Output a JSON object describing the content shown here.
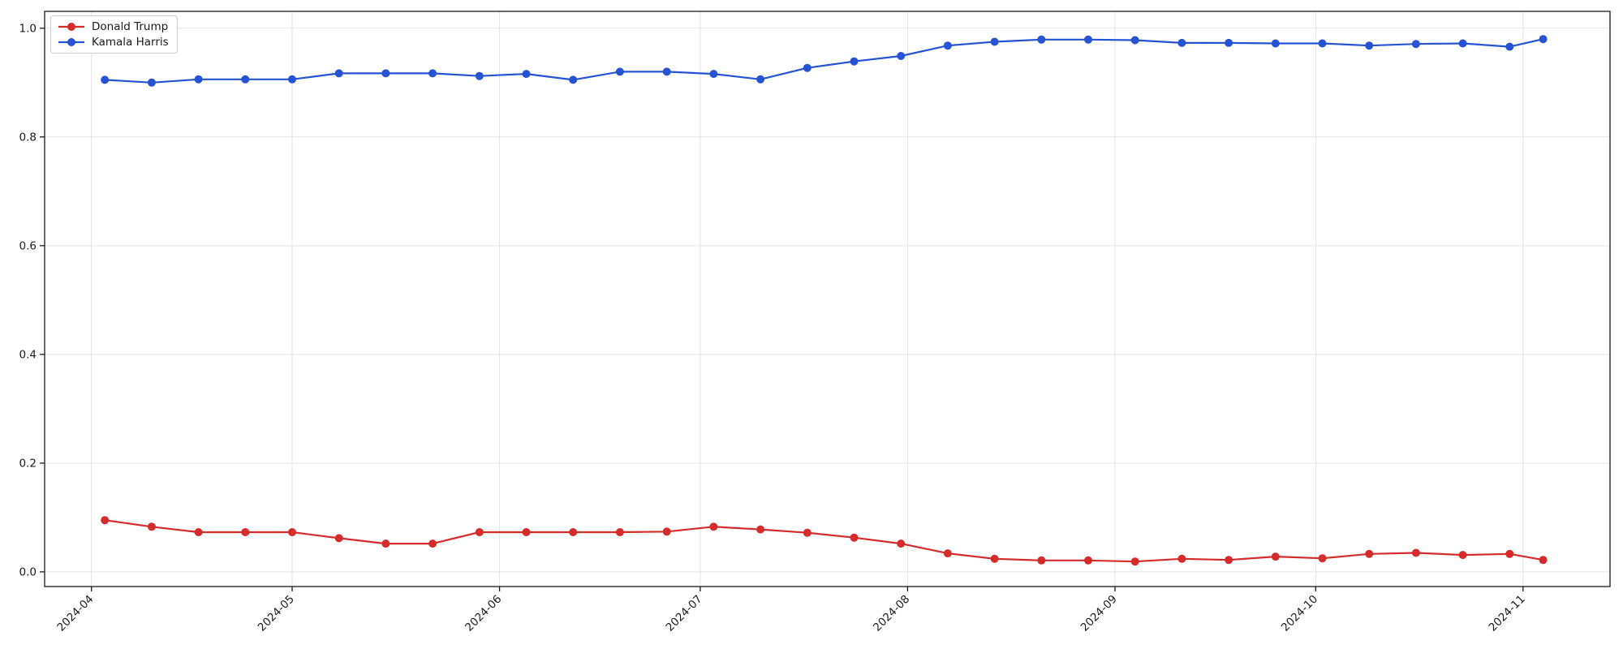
{
  "figure": {
    "background": "#ffffff",
    "text_color": "#1a1a1a",
    "spine_color": "#1a1a1a",
    "grid_color": "#e3e3e3",
    "legend": {
      "position": "upper-left",
      "items": [
        {
          "label": "Donald Trump",
          "color": "#d62b2b"
        },
        {
          "label": "Kamala Harris",
          "color": "#2653d4"
        }
      ]
    }
  },
  "chart_data": {
    "type": "line",
    "title": "",
    "xlabel": "",
    "ylabel": "",
    "grid": true,
    "legend_position": "upper-left",
    "marker": "circle",
    "x": [
      "2024-04-03",
      "2024-04-10",
      "2024-04-17",
      "2024-04-24",
      "2024-05-01",
      "2024-05-08",
      "2024-05-15",
      "2024-05-22",
      "2024-05-29",
      "2024-06-05",
      "2024-06-12",
      "2024-06-19",
      "2024-06-26",
      "2024-07-03",
      "2024-07-10",
      "2024-07-17",
      "2024-07-24",
      "2024-07-31",
      "2024-08-07",
      "2024-08-14",
      "2024-08-21",
      "2024-08-28",
      "2024-09-04",
      "2024-09-11",
      "2024-09-18",
      "2024-09-25",
      "2024-10-02",
      "2024-10-09",
      "2024-10-16",
      "2024-10-23",
      "2024-10-30",
      "2024-11-04"
    ],
    "series": [
      {
        "name": "Donald Trump",
        "color": "#d62b2b",
        "values": [
          0.095,
          0.083,
          0.073,
          0.073,
          0.073,
          0.062,
          0.052,
          0.052,
          0.073,
          0.073,
          0.073,
          0.073,
          0.074,
          0.083,
          0.078,
          0.072,
          0.063,
          0.052,
          0.034,
          0.024,
          0.021,
          0.021,
          0.019,
          0.024,
          0.022,
          0.028,
          0.025,
          0.033,
          0.035,
          0.031,
          0.033,
          0.022
        ]
      },
      {
        "name": "Kamala Harris",
        "color": "#2653d4",
        "values": [
          0.905,
          0.9,
          0.906,
          0.906,
          0.906,
          0.917,
          0.917,
          0.917,
          0.912,
          0.916,
          0.905,
          0.92,
          0.92,
          0.916,
          0.906,
          0.927,
          0.939,
          0.949,
          0.968,
          0.975,
          0.979,
          0.979,
          0.978,
          0.973,
          0.973,
          0.972,
          0.972,
          0.968,
          0.971,
          0.972,
          0.966,
          0.98
        ]
      }
    ],
    "xticks": [
      {
        "label": "2024-04",
        "date": "2024-04-01"
      },
      {
        "label": "2024-05",
        "date": "2024-05-01"
      },
      {
        "label": "2024-06",
        "date": "2024-06-01"
      },
      {
        "label": "2024-07",
        "date": "2024-07-01"
      },
      {
        "label": "2024-08",
        "date": "2024-08-01"
      },
      {
        "label": "2024-09",
        "date": "2024-09-01"
      },
      {
        "label": "2024-10",
        "date": "2024-10-01"
      },
      {
        "label": "2024-11",
        "date": "2024-11-01"
      }
    ],
    "yticks": [
      {
        "label": "0.0",
        "value": 0.0
      },
      {
        "label": "0.2",
        "value": 0.2
      },
      {
        "label": "0.4",
        "value": 0.4
      },
      {
        "label": "0.6",
        "value": 0.6
      },
      {
        "label": "0.8",
        "value": 0.8
      },
      {
        "label": "1.0",
        "value": 1.0
      }
    ],
    "ylim": [
      -0.027,
      1.031
    ],
    "xlim": [
      "2024-03-25",
      "2024-11-14"
    ],
    "xtick_rotation": 45
  }
}
